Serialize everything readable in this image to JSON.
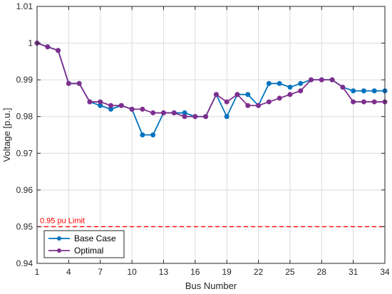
{
  "chart_data": {
    "type": "line",
    "xlabel": "Bus Number",
    "ylabel": "Voltage [p.u.]",
    "xlim": [
      1,
      34
    ],
    "ylim": [
      0.94,
      1.01
    ],
    "x_ticks": [
      1,
      4,
      7,
      10,
      13,
      16,
      19,
      22,
      25,
      28,
      31,
      34
    ],
    "y_ticks": [
      0.94,
      0.95,
      0.96,
      0.97,
      0.98,
      0.99,
      1.0,
      1.01
    ],
    "y_tick_labels": [
      "0.94",
      "0.95",
      "0.96",
      "0.97",
      "0.98",
      "0.99",
      "1",
      "1.01"
    ],
    "grid": true,
    "legend_position": "bottom-left",
    "x": [
      1,
      2,
      3,
      4,
      5,
      6,
      7,
      8,
      9,
      10,
      11,
      12,
      13,
      14,
      15,
      16,
      17,
      18,
      19,
      20,
      21,
      22,
      23,
      24,
      25,
      26,
      27,
      28,
      29,
      30,
      31,
      32,
      33,
      34
    ],
    "series": [
      {
        "name": "Base Case",
        "color": "#0072BD",
        "values": [
          1.0,
          0.999,
          0.998,
          0.989,
          0.989,
          0.984,
          0.983,
          0.982,
          0.983,
          0.982,
          0.975,
          0.975,
          0.981,
          0.981,
          0.981,
          0.98,
          0.98,
          0.986,
          0.98,
          0.986,
          0.986,
          0.983,
          0.989,
          0.989,
          0.988,
          0.989,
          0.99,
          0.99,
          0.99,
          0.988,
          0.987,
          0.987,
          0.987,
          0.987
        ]
      },
      {
        "name": "Optimal",
        "color": "#7E2F8E",
        "values": [
          1.0,
          0.999,
          0.998,
          0.989,
          0.989,
          0.984,
          0.984,
          0.983,
          0.983,
          0.982,
          0.982,
          0.981,
          0.981,
          0.981,
          0.98,
          0.98,
          0.98,
          0.986,
          0.984,
          0.986,
          0.983,
          0.983,
          0.984,
          0.985,
          0.986,
          0.987,
          0.99,
          0.99,
          0.99,
          0.988,
          0.984,
          0.984,
          0.984,
          0.984
        ]
      }
    ],
    "reference_line": {
      "y": 0.95,
      "label": "0.95 pu Limit",
      "color": "#FF0000",
      "style": "dashed"
    }
  }
}
